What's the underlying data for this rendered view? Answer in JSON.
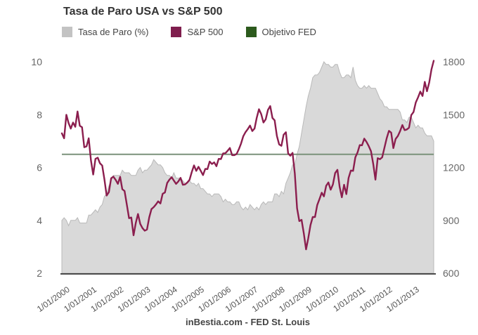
{
  "page": {
    "title": "Tasa de Paro USA vs S&P 500",
    "footer": "inBestia.com - FED St. Louis"
  },
  "legend": {
    "items": [
      {
        "label": "Tasa de Paro (%)",
        "color": "#c3c3c3"
      },
      {
        "label": "S&P 500",
        "color": "#7f1e4e"
      },
      {
        "label": "Objetivo FED",
        "color": "#2c5a1d"
      }
    ]
  },
  "chart_data": {
    "type": "area",
    "title": "Tasa de Paro USA vs S&P 500",
    "subtitle": "",
    "grid": false,
    "legend_position": "top",
    "x_unit": "month",
    "x_range_months": [
      "1/2000",
      "11/2013"
    ],
    "x_tick_labels": [
      "1/01/2000",
      "1/01/2001",
      "1/01/2002",
      "1/01/2003",
      "1/01/2004",
      "1/01/2005",
      "1/01/2006",
      "1/01/2007",
      "1/01/2008",
      "1/01/2009",
      "1/01/2010",
      "1/01/2011",
      "1/01/2012",
      "1/01/2013"
    ],
    "left_axis": {
      "label": "Tasa de Paro (%)",
      "range": [
        2,
        10
      ],
      "ticks": [
        10,
        8,
        6,
        4,
        2
      ]
    },
    "right_axis": {
      "label": "S&P 500",
      "range": [
        600,
        1800
      ],
      "ticks": [
        1800,
        1500,
        1200,
        900,
        600
      ]
    },
    "fed_target": {
      "label": "Objetivo FED",
      "axis": "left",
      "value": 6.5,
      "line_color": "#7b927b",
      "legend_color": "#2c5a1d"
    },
    "series": [
      {
        "name": "Tasa de Paro (%)",
        "type": "area",
        "axis": "left",
        "fill": "#d9d9d9",
        "stroke": "#b9b9b9",
        "values": [
          4.0,
          4.1,
          4.0,
          3.8,
          4.0,
          4.0,
          4.0,
          4.1,
          3.9,
          3.9,
          3.9,
          3.9,
          4.2,
          4.2,
          4.3,
          4.4,
          4.3,
          4.5,
          4.6,
          4.9,
          5.0,
          5.3,
          5.5,
          5.7,
          5.7,
          5.7,
          5.7,
          5.9,
          5.8,
          5.8,
          5.8,
          5.7,
          5.7,
          5.7,
          5.9,
          6.0,
          5.8,
          5.9,
          5.9,
          6.0,
          6.1,
          6.3,
          6.2,
          6.1,
          6.1,
          6.0,
          5.8,
          5.7,
          5.7,
          5.6,
          5.8,
          5.6,
          5.6,
          5.6,
          5.5,
          5.4,
          5.4,
          5.5,
          5.4,
          5.4,
          5.3,
          5.4,
          5.2,
          5.2,
          5.1,
          5.0,
          5.0,
          4.9,
          5.0,
          5.0,
          5.0,
          4.9,
          4.7,
          4.8,
          4.7,
          4.7,
          4.6,
          4.6,
          4.7,
          4.7,
          4.5,
          4.4,
          4.5,
          4.4,
          4.6,
          4.5,
          4.4,
          4.5,
          4.4,
          4.6,
          4.7,
          4.6,
          4.7,
          4.7,
          4.7,
          5.0,
          5.0,
          4.9,
          5.1,
          5.0,
          5.4,
          5.6,
          5.8,
          6.1,
          6.1,
          6.5,
          6.8,
          7.3,
          7.8,
          8.3,
          8.7,
          9.0,
          9.4,
          9.5,
          9.5,
          9.6,
          9.8,
          10.0,
          9.9,
          9.9,
          9.8,
          9.8,
          9.9,
          9.9,
          9.6,
          9.4,
          9.4,
          9.5,
          9.5,
          9.4,
          9.8,
          9.3,
          9.1,
          9.0,
          9.0,
          9.1,
          9.0,
          9.1,
          9.0,
          9.0,
          9.0,
          8.8,
          8.6,
          8.5,
          8.3,
          8.3,
          8.2,
          8.2,
          8.2,
          8.2,
          8.2,
          8.1,
          7.8,
          7.8,
          7.7,
          7.9,
          7.9,
          7.7,
          7.5,
          7.6,
          7.5,
          7.5,
          7.3,
          7.2,
          7.2,
          7.2,
          7.0
        ]
      },
      {
        "name": "S&P 500",
        "type": "line",
        "axis": "right",
        "stroke": "#8b1e4e",
        "values": [
          1394,
          1366,
          1499,
          1452,
          1421,
          1455,
          1431,
          1518,
          1437,
          1429,
          1315,
          1320,
          1366,
          1240,
          1160,
          1249,
          1256,
          1224,
          1211,
          1134,
          1041,
          1060,
          1139,
          1148,
          1130,
          1107,
          1147,
          1077,
          1067,
          990,
          912,
          916,
          815,
          886,
          936,
          880,
          856,
          841,
          848,
          917,
          964,
          975,
          990,
          1008,
          996,
          1051,
          1058,
          1112,
          1131,
          1145,
          1126,
          1107,
          1121,
          1141,
          1102,
          1104,
          1115,
          1130,
          1174,
          1212,
          1181,
          1204,
          1181,
          1157,
          1192,
          1191,
          1234,
          1220,
          1229,
          1207,
          1249,
          1248,
          1280,
          1281,
          1295,
          1311,
          1270,
          1270,
          1277,
          1304,
          1336,
          1378,
          1401,
          1418,
          1438,
          1407,
          1421,
          1482,
          1531,
          1503,
          1455,
          1474,
          1527,
          1549,
          1481,
          1468,
          1379,
          1331,
          1323,
          1386,
          1400,
          1280,
          1267,
          1283,
          1166,
          969,
          896,
          903,
          826,
          735,
          798,
          873,
          919,
          919,
          987,
          1021,
          1057,
          1036,
          1096,
          1115,
          1074,
          1104,
          1169,
          1187,
          1089,
          1031,
          1102,
          1049,
          1141,
          1183,
          1181,
          1258,
          1286,
          1327,
          1326,
          1364,
          1345,
          1321,
          1292,
          1219,
          1131,
          1253,
          1247,
          1258,
          1312,
          1366,
          1408,
          1398,
          1310,
          1362,
          1379,
          1407,
          1441,
          1412,
          1416,
          1426,
          1498,
          1515,
          1569,
          1598,
          1631,
          1606,
          1686,
          1633,
          1682,
          1757,
          1806
        ]
      }
    ],
    "axis_colors": {
      "tick_text": "#666666",
      "x_tick_text": "#555555",
      "axis_line": "#4a4a4a"
    }
  }
}
